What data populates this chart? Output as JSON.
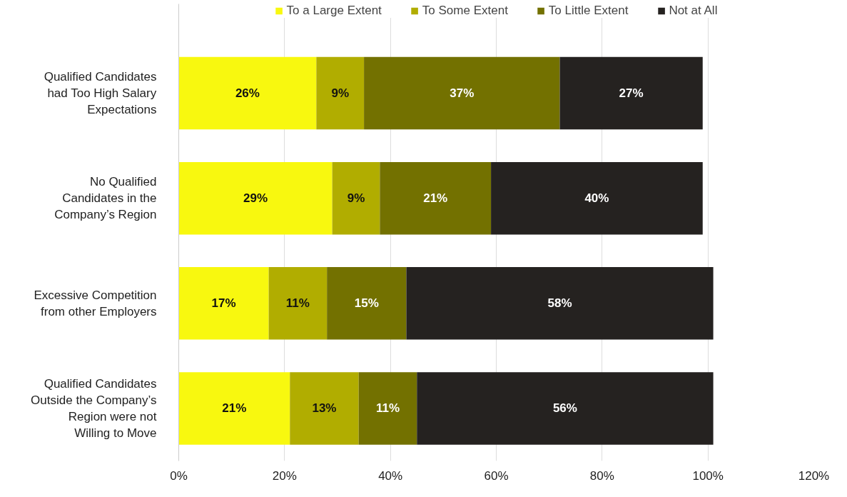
{
  "chart_data": {
    "type": "bar",
    "orientation": "horizontal",
    "stacked": true,
    "categories": [
      "Qualified Candidates had Too High Salary Expectations",
      "No Qualified Candidates in the Company’s Region",
      "Excessive Competition from other Employers",
      "Qualified Candidates Outside the Company’s Region were not Willing to Move"
    ],
    "series": [
      {
        "name": "To a Large Extent",
        "color": "#f8f80f",
        "values": [
          26,
          29,
          17,
          21
        ],
        "value_labels": [
          "26%",
          "29%",
          "17%",
          "21%"
        ]
      },
      {
        "name": "To Some Extent",
        "color": "#b1ad00",
        "values": [
          9,
          9,
          11,
          13
        ],
        "value_labels": [
          "9%",
          "9%",
          "11%",
          "13%"
        ]
      },
      {
        "name": "To Little Extent",
        "color": "#737100",
        "values": [
          37,
          21,
          15,
          11
        ],
        "value_labels": [
          "37%",
          "21%",
          "15%",
          "11%"
        ]
      },
      {
        "name": "Not at All",
        "color": "#252220",
        "values": [
          27,
          40,
          58,
          56
        ],
        "value_labels": [
          "27%",
          "40%",
          "58%",
          "56%"
        ]
      }
    ],
    "xlim": [
      0,
      120
    ],
    "xticks": [
      {
        "value": 0,
        "label": "0%"
      },
      {
        "value": 20,
        "label": "20%"
      },
      {
        "value": 40,
        "label": "40%"
      },
      {
        "value": 60,
        "label": "60%"
      },
      {
        "value": 80,
        "label": "80%"
      },
      {
        "value": 100,
        "label": "100%"
      },
      {
        "value": 120,
        "label": "120%"
      }
    ],
    "grid": "x",
    "legend": "top"
  }
}
